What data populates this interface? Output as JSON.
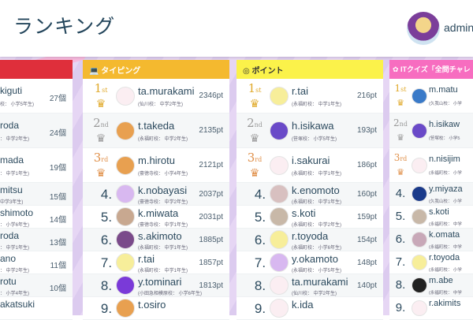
{
  "header": {
    "title": "ランキング",
    "user_name": "admin"
  },
  "columns": [
    {
      "title": "",
      "color": "#df2f3b",
      "icon": "",
      "rows": [
        {
          "name": "kiguti",
          "school": "校： 小学5年生)",
          "score": "27個"
        },
        {
          "name": "roda",
          "school": "： 中学2年生)",
          "score": "24個"
        },
        {
          "name": "mada",
          "school": "： 中学1年生)",
          "score": "19個"
        },
        {
          "name": "mitsu",
          "school": "中学3年生)",
          "score": "15個"
        },
        {
          "name": "shimoto",
          "school": "： 小学6年生)",
          "score": "14個"
        },
        {
          "name": "roda",
          "school": "： 中学1年生)",
          "score": "13個"
        },
        {
          "name": "ano",
          "school": "： 中学2年生)",
          "score": "11個"
        },
        {
          "name": "rotu",
          "school": "： 小学4年生)",
          "score": "10個"
        },
        {
          "name": "akatsuki",
          "school": "",
          "score": ""
        }
      ]
    },
    {
      "title": "タイピング",
      "color": "#f4b92f",
      "icon": "laptop-icon",
      "rows": [
        {
          "rank": "1st",
          "name": "ta.murakami",
          "school": "(仙川校： 中学2年生)",
          "score": "2346pt",
          "avatar": "#fbeef2"
        },
        {
          "rank": "2nd",
          "name": "t.takeda",
          "school": "(永福町校： 中学2年生)",
          "score": "2135pt",
          "avatar": "#e8a050"
        },
        {
          "rank": "3rd",
          "name": "m.hirotu",
          "school": "(豪徳寺校： 小学4年生)",
          "score": "2121pt",
          "avatar": "#e8a050"
        },
        {
          "rank": "4.",
          "name": "k.nobayasi",
          "school": "(豪徳寺校： 中学2年生)",
          "score": "2037pt",
          "avatar": "#d8b8f0"
        },
        {
          "rank": "5.",
          "name": "k.miwata",
          "school": "(豪徳寺校： 中学1年生)",
          "score": "2031pt",
          "avatar": "#c8a890"
        },
        {
          "rank": "6.",
          "name": "s.akimoto",
          "school": "(永福町校： 中学1年生)",
          "score": "1885pt",
          "avatar": "#7a4a8a"
        },
        {
          "rank": "7.",
          "name": "r.tai",
          "school": "(永福町校： 中学1年生)",
          "score": "1857pt",
          "avatar": "#f7ee9a"
        },
        {
          "rank": "8.",
          "name": "y.tominari",
          "school": "(小田急相模原校： 小学6年生)",
          "score": "1813pt",
          "avatar": "#7a3ad8"
        },
        {
          "rank": "9.",
          "name": "t.osiro",
          "school": "",
          "score": "",
          "avatar": "#e8a050"
        }
      ]
    },
    {
      "title": "ポイント",
      "color": "#fbf24a",
      "icon": "coins-icon",
      "dark": true,
      "rows": [
        {
          "rank": "1st",
          "name": "r.tai",
          "school": "(永福町校： 中学1年生)",
          "score": "216pt",
          "avatar": "#f7ee9a"
        },
        {
          "rank": "2nd",
          "name": "h.isikawa",
          "school": "(笹塚校： 小学5年生)",
          "score": "193pt",
          "avatar": "#6a4ac8"
        },
        {
          "rank": "3rd",
          "name": "i.sakurai",
          "school": "(永福町校： 中学1年生)",
          "score": "186pt",
          "avatar": "#fbeef2"
        },
        {
          "rank": "4.",
          "name": "k.enomoto",
          "school": "(永福町校： 中学1年生)",
          "score": "160pt",
          "avatar": "#d8c0c0"
        },
        {
          "rank": "5.",
          "name": "s.koti",
          "school": "(永福町校： 中学2年生)",
          "score": "159pt",
          "avatar": "#c8b8a8"
        },
        {
          "rank": "6.",
          "name": "r.toyoda",
          "school": "(永福町校： 小学6年生)",
          "score": "154pt",
          "avatar": "#f7ee9a"
        },
        {
          "rank": "7.",
          "name": "y.okamoto",
          "school": "(永福町校： 小学5年生)",
          "score": "148pt",
          "avatar": "#d8b8f0"
        },
        {
          "rank": "8.",
          "name": "ta.murakami",
          "school": "(仙川校： 中学2年生)",
          "score": "140pt",
          "avatar": "#fbeef2"
        },
        {
          "rank": "9.",
          "name": "k.ida",
          "school": "",
          "score": "",
          "avatar": "#fbeef2"
        }
      ]
    },
    {
      "title": "ITクイズ「全問チャレ",
      "color": "#f76dc0",
      "icon": "flower-icon",
      "rows": [
        {
          "rank": "1st",
          "name": "m.matu",
          "school": "(久我山校： 小学",
          "score": "",
          "avatar": "#3a7ac8"
        },
        {
          "rank": "2nd",
          "name": "h.isikaw",
          "school": "(笹塚校： 小学5",
          "score": "",
          "avatar": "#6a4ac8"
        },
        {
          "rank": "3rd",
          "name": "n.nisijim",
          "school": "(永福町校： 小学",
          "score": "",
          "avatar": "#fbeef2"
        },
        {
          "rank": "4.",
          "name": "y.miyaza",
          "school": "(久我山校： 小学",
          "score": "",
          "avatar": "#1a3a8a"
        },
        {
          "rank": "5.",
          "name": "s.koti",
          "school": "(永福町校： 中学",
          "score": "",
          "avatar": "#c8b8a8"
        },
        {
          "rank": "6.",
          "name": "k.omata",
          "school": "(永福町校： 中学",
          "score": "",
          "avatar": "#c8a8b8"
        },
        {
          "rank": "7.",
          "name": "r.toyoda",
          "school": "(永福町校： 小学",
          "score": "",
          "avatar": "#f7ee9a"
        },
        {
          "rank": "8.",
          "name": "m.abe",
          "school": "(永福町校： 中学",
          "score": "",
          "avatar": "#222"
        },
        {
          "rank": "9.",
          "name": "r.akimits",
          "school": "",
          "score": "",
          "avatar": "#fbeef2"
        }
      ]
    }
  ],
  "medal_colors": {
    "1st": "#e0a92a",
    "2nd": "#9a9a9a",
    "3rd": "#e0904a"
  }
}
